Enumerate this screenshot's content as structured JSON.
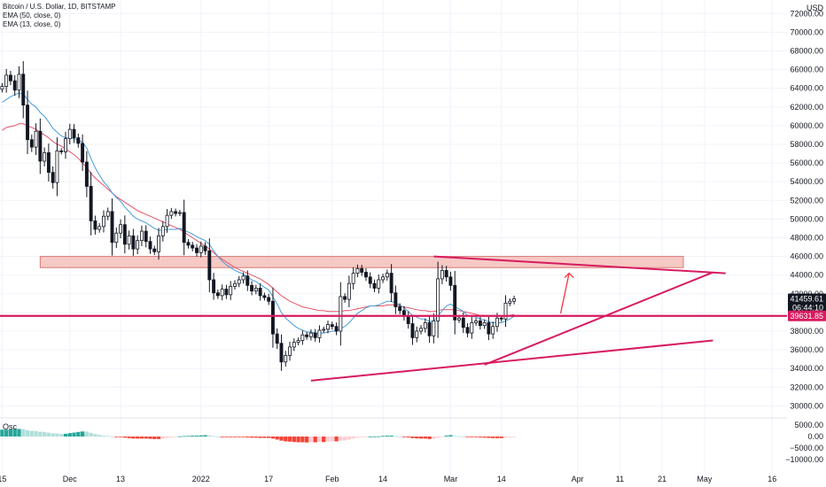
{
  "legend": {
    "symbol": "Bitcoin / U.S. Dollar, 1D, BITSTAMP",
    "ema50": "EMA (50, close, 0)",
    "ema13": "EMA (13, close, 0)"
  },
  "oscillator_label": "Osc",
  "colors": {
    "background": "#ffffff",
    "grid": "#f0f3fa",
    "candle_up": "#ffffff",
    "candle_down": "#131722",
    "candle_border": "#131722",
    "ema50": "#e5536a",
    "ema13": "#4a9cd6",
    "annotation": "#d81b60",
    "zone_fill": "#f3b7b0",
    "zone_border": "#d87a78",
    "hist_pos_strong": "#26a69a",
    "hist_pos_weak": "#b2dfdb",
    "hist_neg_strong": "#f44336",
    "hist_neg_weak": "#ffcdd2",
    "last_price_bg": "#131722",
    "level_bg": "#d81b60"
  },
  "chart_data": {
    "type": "candlestick",
    "title": "Bitcoin / U.S. Dollar, 1D, BITSTAMP",
    "currency": "USD",
    "y_ticks": [
      30000,
      32000,
      34000,
      36000,
      38000,
      40000,
      42000,
      44000,
      46000,
      48000,
      50000,
      52000,
      54000,
      56000,
      58000,
      60000,
      62000,
      64000,
      66000,
      68000,
      70000,
      72000
    ],
    "ylim": [
      28900,
      72500
    ],
    "x_ticks": [
      "15",
      "Dec",
      "13",
      "2022",
      "17",
      "Feb",
      "14",
      "Mar",
      "14",
      "Apr",
      "11",
      "21",
      "May",
      "16"
    ],
    "x_tick_days": [
      0,
      16,
      28,
      47,
      63,
      78,
      90,
      106,
      118,
      136,
      146,
      156,
      166,
      182
    ],
    "x_start": "2021-11-15",
    "days_visible": 186,
    "closes": [
      64200,
      65400,
      64800,
      63800,
      65500,
      62200,
      58500,
      57700,
      59400,
      56200,
      57100,
      55000,
      53900,
      57300,
      57200,
      58600,
      59600,
      58700,
      58100,
      56100,
      53500,
      49800,
      48900,
      49200,
      50300,
      50800,
      47500,
      48500,
      49400,
      47300,
      48200,
      46800,
      47700,
      48700,
      47600,
      46800,
      46500,
      48200,
      49200,
      50400,
      50800,
      50600,
      50700,
      47500,
      47200,
      46900,
      46400,
      47100,
      46600,
      43500,
      42100,
      41800,
      42500,
      41900,
      42800,
      43100,
      43500,
      43900,
      42900,
      42300,
      42600,
      41800,
      41600,
      41200,
      37700,
      36700,
      34700,
      35400,
      36300,
      36800,
      37000,
      37600,
      37400,
      37800,
      37300,
      38100,
      38200,
      38700,
      38500,
      38000,
      41700,
      41400,
      43100,
      44200,
      44700,
      44300,
      43800,
      43100,
      42600,
      43500,
      43800,
      44200,
      42100,
      40600,
      40200,
      39600,
      38800,
      37300,
      38000,
      38300,
      38900,
      37500,
      39100,
      43600,
      44500,
      43800,
      42900,
      39200,
      39400,
      38400,
      37800,
      38900,
      39100,
      38600,
      38900,
      37700,
      38500,
      39400,
      39300,
      41000,
      41200,
      41460
    ],
    "ema50": [
      59500,
      59800,
      59900,
      60000,
      60200,
      60200,
      60000,
      59800,
      59600,
      59300,
      59000,
      58700,
      58300,
      58000,
      57800,
      57500,
      57200,
      56900,
      56500,
      56000,
      55500,
      54900,
      54400,
      54000,
      53600,
      53200,
      52800,
      52400,
      52100,
      51800,
      51500,
      51200,
      50900,
      50700,
      50500,
      50300,
      50100,
      49900,
      49700,
      49500,
      49300,
      49100,
      48900,
      48600,
      48300,
      48000,
      47700,
      47400,
      47100,
      46800,
      46400,
      46000,
      45700,
      45400,
      45100,
      44800,
      44600,
      44400,
      44200,
      44000,
      43800,
      43600,
      43300,
      43000,
      42600,
      42200,
      41800,
      41500,
      41200,
      41000,
      40800,
      40600,
      40500,
      40400,
      40300,
      40200,
      40200,
      40100,
      40100,
      40100,
      40100,
      40200,
      40200,
      40300,
      40400,
      40500,
      40600,
      40700,
      40700,
      40700,
      40700,
      40800,
      40800,
      40800,
      40700,
      40600,
      40500,
      40400,
      40300,
      40200,
      40200,
      40100,
      40100,
      40200,
      40300,
      40300,
      40300,
      40300,
      40200,
      40100,
      40000,
      39900,
      39800,
      39700,
      39700,
      39600,
      39600,
      39600,
      39600,
      39600,
      39700,
      39800
    ],
    "ema13": [
      62500,
      62800,
      63100,
      63300,
      63500,
      63400,
      62800,
      62300,
      62000,
      61400,
      61000,
      60400,
      59700,
      59300,
      58900,
      58700,
      58700,
      58600,
      58500,
      58200,
      57600,
      56500,
      55500,
      54700,
      54000,
      53500,
      52800,
      52300,
      51900,
      51300,
      50800,
      50300,
      50000,
      49800,
      49600,
      49300,
      49000,
      48800,
      48800,
      48900,
      48900,
      48900,
      49000,
      48800,
      48600,
      48400,
      48100,
      47900,
      47700,
      47300,
      46600,
      46000,
      45500,
      45100,
      44800,
      44500,
      44300,
      44100,
      43800,
      43500,
      43300,
      43000,
      42700,
      42400,
      41700,
      40900,
      40000,
      39400,
      39000,
      38600,
      38300,
      38100,
      37900,
      37900,
      37800,
      37800,
      37800,
      37900,
      38000,
      38000,
      38300,
      38500,
      38900,
      39400,
      39900,
      40200,
      40500,
      40700,
      40700,
      40800,
      41000,
      41200,
      41200,
      41000,
      40800,
      40500,
      40100,
      39700,
      39500,
      39300,
      39300,
      39000,
      39100,
      39600,
      40200,
      40700,
      40900,
      40600,
      40400,
      40100,
      39700,
      39600,
      39500,
      39300,
      39200,
      39000,
      38900,
      38900,
      38900,
      39100,
      39300,
      39600
    ],
    "oscillator_range": [
      -11000,
      6500
    ],
    "oscillator_ticks": [
      5000,
      0,
      -5000,
      -10000
    ],
    "current_price": 41459.61,
    "countdown": "06:44:10",
    "level_price": 39631.85,
    "resistance_zone": [
      44800,
      46000
    ],
    "annotations": [
      {
        "type": "horizontal-line",
        "price": 39631.85
      },
      {
        "type": "rectangle",
        "from_day": 9,
        "to_day": 161,
        "low": 44800,
        "high": 46000
      },
      {
        "type": "trendline",
        "from": [
          102,
          46000
        ],
        "to": [
          171,
          44200
        ]
      },
      {
        "type": "trendline",
        "from": [
          114,
          34400
        ],
        "to": [
          168,
          44300
        ]
      },
      {
        "type": "trendline",
        "from": [
          73,
          32700
        ],
        "to": [
          168,
          37000
        ]
      },
      {
        "type": "arrow",
        "from": [
          132,
          39900
        ],
        "to": [
          134,
          44200
        ]
      }
    ],
    "y_tick_labels": [
      "30000.00",
      "32000.00",
      "34000.00",
      "36000.00",
      "38000.00",
      "40000.00",
      "42000.00",
      "44000.00",
      "46000.00",
      "48000.00",
      "50000.00",
      "52000.00",
      "54000.00",
      "56000.00",
      "58000.00",
      "60000.00",
      "62000.00",
      "64000.00",
      "66000.00",
      "68000.00",
      "70000.00",
      "72000.00"
    ],
    "oscillator_tick_labels": [
      "5000.00",
      "0.00",
      "−5000.00",
      "−10000.00"
    ],
    "current_price_label": "41459.61",
    "level_price_label": "39631.85"
  }
}
